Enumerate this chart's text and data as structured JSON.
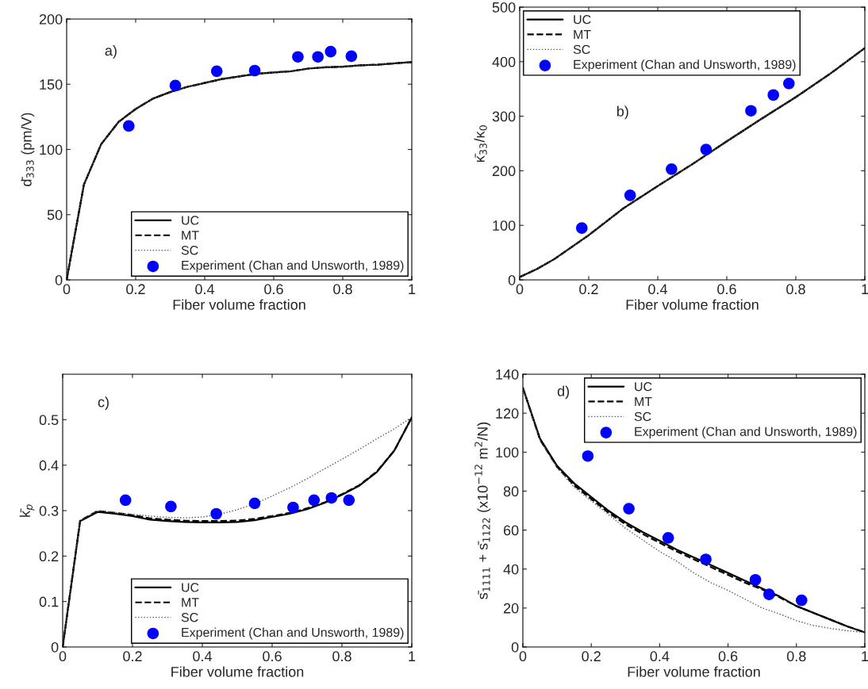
{
  "chart_data": [
    {
      "type": "line",
      "xlabel": "Fiber volume fraction",
      "ylabel": "d̄$_{333}$ (pm/V)",
      "xlim": [
        0,
        1
      ],
      "xticks": [
        0,
        0.2,
        0.4,
        0.6,
        0.8,
        1
      ],
      "ylim": [
        0,
        200
      ],
      "yticks": [
        0,
        50,
        100,
        150,
        200
      ],
      "legend": "bottom right",
      "annotations": [
        "a)"
      ],
      "series": [
        {
          "name": "UC",
          "type": "line",
          "color": "#000000",
          "line_style": "solid",
          "x": [
            0,
            0.05,
            0.1,
            0.15,
            0.2,
            0.25,
            0.3,
            0.35,
            0.4,
            0.45,
            0.5,
            0.55,
            0.6,
            0.65,
            0.7,
            0.75,
            0.8,
            0.85,
            0.9,
            0.95,
            1
          ],
          "values": [
            0,
            73,
            104,
            121,
            131,
            139,
            144,
            148,
            151,
            154,
            156,
            158,
            159,
            160,
            162,
            163,
            163.5,
            164.5,
            165,
            166,
            167
          ]
        },
        {
          "name": "MT",
          "type": "line",
          "color": "#000000",
          "line_style": "dashed",
          "x": [
            0,
            0.05,
            0.1,
            0.15,
            0.2,
            0.25,
            0.3,
            0.35,
            0.4,
            0.45,
            0.5,
            0.55,
            0.6,
            0.65,
            0.7,
            0.75,
            0.8,
            0.85,
            0.9,
            0.95,
            1
          ],
          "values": [
            0,
            73,
            104,
            121,
            131,
            139,
            144,
            148,
            151,
            154,
            156,
            158,
            159,
            160,
            162,
            163,
            163.5,
            164.5,
            165,
            166,
            167
          ]
        },
        {
          "name": "SC",
          "type": "line",
          "color": "#555555",
          "line_style": "dotted",
          "x": [
            0,
            0.05,
            0.1,
            0.15,
            0.2,
            0.25,
            0.3,
            0.35,
            0.4,
            0.45,
            0.5,
            0.55,
            0.6,
            0.65,
            0.7,
            0.75,
            0.8,
            0.85,
            0.9,
            0.95,
            1
          ],
          "values": [
            0,
            73,
            104,
            121,
            131,
            139,
            144,
            148,
            151,
            154,
            156,
            158,
            159,
            160,
            162,
            163,
            163.5,
            164.5,
            165,
            166,
            167
          ]
        },
        {
          "name": "Experiment (Chan and Unsworth, 1989)",
          "type": "scatter",
          "color": "#0000ff",
          "marker": "circle",
          "x": [
            0.18,
            0.315,
            0.435,
            0.545,
            0.67,
            0.728,
            0.765,
            0.825
          ],
          "values": [
            118,
            149,
            160,
            160.5,
            171,
            171,
            175,
            171.5
          ]
        }
      ]
    },
    {
      "type": "line",
      "xlabel": "Fiber volume fraction",
      "ylabel": "κ̄$_{33}$/κ$_{0}$",
      "xlim": [
        0,
        1
      ],
      "xticks": [
        0,
        0.2,
        0.4,
        0.6,
        0.8,
        1
      ],
      "ylim": [
        0,
        500
      ],
      "yticks": [
        0,
        100,
        200,
        300,
        400,
        500
      ],
      "legend": "top left",
      "annotations": [
        "b)"
      ],
      "series": [
        {
          "name": "UC",
          "type": "line",
          "color": "#000000",
          "line_style": "solid",
          "x": [
            0,
            0.05,
            0.1,
            0.2,
            0.3,
            0.4,
            0.5,
            0.6,
            0.7,
            0.8,
            0.9,
            1
          ],
          "values": [
            5,
            20,
            38,
            82,
            131,
            172,
            212,
            254,
            295,
            335,
            378,
            425
          ]
        },
        {
          "name": "MT",
          "type": "line",
          "color": "#000000",
          "line_style": "dashed",
          "x": [
            0,
            0.05,
            0.1,
            0.2,
            0.3,
            0.4,
            0.5,
            0.6,
            0.7,
            0.8,
            0.9,
            1
          ],
          "values": [
            5,
            20,
            38,
            82,
            131,
            172,
            212,
            254,
            295,
            335,
            378,
            425
          ]
        },
        {
          "name": "SC",
          "type": "line",
          "color": "#555555",
          "line_style": "dotted",
          "x": [
            0,
            0.05,
            0.1,
            0.2,
            0.3,
            0.4,
            0.5,
            0.6,
            0.7,
            0.8,
            0.9,
            1
          ],
          "values": [
            5,
            20,
            38,
            82,
            131,
            172,
            212,
            254,
            295,
            335,
            378,
            425
          ]
        },
        {
          "name": "Experiment (Chan and Unsworth, 1989)",
          "type": "scatter",
          "color": "#0000ff",
          "marker": "circle",
          "x": [
            0.18,
            0.32,
            0.44,
            0.54,
            0.67,
            0.735,
            0.78
          ],
          "values": [
            95,
            155,
            203,
            239,
            310,
            339,
            360
          ]
        }
      ]
    },
    {
      "type": "line",
      "xlabel": "Fiber volume fraction",
      "ylabel": "k̄$_{p}$",
      "xlim": [
        0,
        1
      ],
      "xticks": [
        0,
        0.2,
        0.4,
        0.6,
        0.8,
        1
      ],
      "ylim": [
        0,
        0.6
      ],
      "yticks": [
        0,
        0.1,
        0.2,
        0.3,
        0.4,
        0.5
      ],
      "legend": "bottom right",
      "annotations": [
        "c)"
      ],
      "series": [
        {
          "name": "UC",
          "type": "line",
          "color": "#000000",
          "line_style": "solid",
          "x": [
            0,
            0.05,
            0.1,
            0.15,
            0.2,
            0.25,
            0.3,
            0.35,
            0.4,
            0.45,
            0.5,
            0.55,
            0.6,
            0.65,
            0.7,
            0.75,
            0.8,
            0.85,
            0.9,
            0.95,
            1
          ],
          "values": [
            0,
            0.277,
            0.297,
            0.293,
            0.288,
            0.28,
            0.277,
            0.275,
            0.274,
            0.274,
            0.275,
            0.279,
            0.286,
            0.293,
            0.303,
            0.317,
            0.335,
            0.355,
            0.385,
            0.432,
            0.505
          ]
        },
        {
          "name": "MT",
          "type": "line",
          "color": "#000000",
          "line_style": "dashed",
          "x": [
            0,
            0.05,
            0.1,
            0.15,
            0.2,
            0.25,
            0.3,
            0.35,
            0.4,
            0.45,
            0.5,
            0.55,
            0.6,
            0.65,
            0.7,
            0.75,
            0.8,
            0.85,
            0.9,
            0.95,
            1
          ],
          "values": [
            0,
            0.278,
            0.299,
            0.295,
            0.29,
            0.283,
            0.28,
            0.278,
            0.277,
            0.277,
            0.278,
            0.282,
            0.288,
            0.295,
            0.305,
            0.318,
            0.336,
            0.356,
            0.386,
            0.432,
            0.505
          ]
        },
        {
          "name": "SC",
          "type": "line",
          "color": "#555555",
          "line_style": "dotted",
          "x": [
            0,
            0.05,
            0.1,
            0.15,
            0.2,
            0.25,
            0.3,
            0.35,
            0.4,
            0.45,
            0.5,
            0.55,
            0.6,
            0.65,
            0.7,
            0.75,
            0.8,
            0.85,
            0.9,
            0.95,
            1
          ],
          "values": [
            0,
            0.278,
            0.3,
            0.296,
            0.292,
            0.288,
            0.285,
            0.284,
            0.286,
            0.292,
            0.302,
            0.315,
            0.332,
            0.35,
            0.37,
            0.392,
            0.413,
            0.435,
            0.458,
            0.48,
            0.505
          ]
        },
        {
          "name": "Experiment (Chan and Unsworth, 1989)",
          "type": "scatter",
          "color": "#0000ff",
          "marker": "circle",
          "x": [
            0.18,
            0.31,
            0.44,
            0.55,
            0.66,
            0.72,
            0.77,
            0.82
          ],
          "values": [
            0.323,
            0.309,
            0.293,
            0.316,
            0.307,
            0.323,
            0.328,
            0.323
          ]
        }
      ]
    },
    {
      "type": "line",
      "xlabel": "Fiber volume fraction",
      "ylabel": "s̄$_{1111}$ + s̄$_{1122}$ (x10$^{−12}$ m$^{2}$/N)",
      "xlim": [
        0,
        1
      ],
      "xticks": [
        0,
        0.2,
        0.4,
        0.6,
        0.8,
        1
      ],
      "ylim": [
        0,
        140
      ],
      "yticks": [
        0,
        20,
        40,
        60,
        80,
        100,
        120,
        140
      ],
      "legend": "top right",
      "annotations": [
        "d)"
      ],
      "series": [
        {
          "name": "UC",
          "type": "line",
          "color": "#000000",
          "line_style": "solid",
          "x": [
            0,
            0.05,
            0.1,
            0.15,
            0.2,
            0.25,
            0.3,
            0.35,
            0.4,
            0.45,
            0.5,
            0.55,
            0.6,
            0.65,
            0.7,
            0.75,
            0.8,
            0.85,
            0.9,
            0.95,
            1
          ],
          "values": [
            133,
            107,
            93,
            84,
            77,
            70,
            64,
            59,
            54.5,
            50,
            46,
            42,
            38,
            34,
            30,
            26,
            21,
            17.5,
            14,
            10.5,
            7.5
          ]
        },
        {
          "name": "MT",
          "type": "line",
          "color": "#000000",
          "line_style": "dashed",
          "x": [
            0,
            0.05,
            0.1,
            0.15,
            0.2,
            0.25,
            0.3,
            0.35,
            0.4,
            0.45,
            0.5,
            0.55,
            0.6,
            0.65,
            0.7,
            0.75,
            0.8,
            0.85,
            0.9,
            0.95,
            1
          ],
          "values": [
            133,
            106.5,
            92.5,
            83,
            76,
            69,
            63,
            58,
            53.5,
            49,
            45,
            41,
            37,
            33,
            29.5,
            25.5,
            21,
            17.5,
            14,
            10.5,
            7.5
          ]
        },
        {
          "name": "SC",
          "type": "line",
          "color": "#555555",
          "line_style": "dotted",
          "x": [
            0,
            0.05,
            0.1,
            0.15,
            0.2,
            0.25,
            0.3,
            0.35,
            0.4,
            0.45,
            0.5,
            0.55,
            0.6,
            0.65,
            0.7,
            0.75,
            0.8,
            0.85,
            0.9,
            0.95,
            1
          ],
          "values": [
            133,
            106,
            92,
            82,
            75,
            68,
            61,
            55,
            49,
            44,
            38,
            33,
            29,
            24.5,
            20,
            17,
            13.5,
            11,
            9.5,
            8.3,
            7.5
          ]
        },
        {
          "name": "Experiment (Chan and Unsworth, 1989)",
          "type": "scatter",
          "color": "#0000ff",
          "marker": "circle",
          "x": [
            0.19,
            0.31,
            0.425,
            0.535,
            0.68,
            0.72,
            0.815
          ],
          "values": [
            98,
            71,
            56,
            45,
            34.5,
            27,
            24
          ]
        }
      ]
    }
  ]
}
